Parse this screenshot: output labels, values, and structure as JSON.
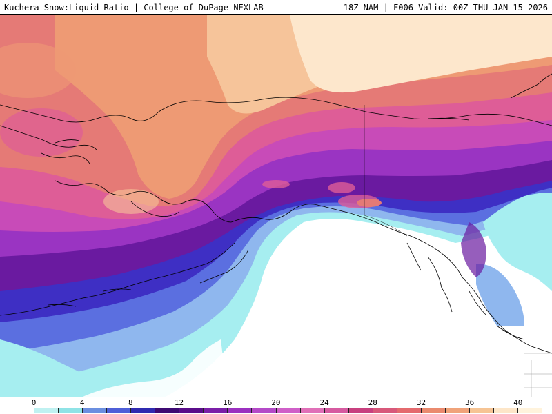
{
  "header": {
    "title_left": "Kuchera Snow:Liquid Ratio | College of DuPage NEXLAB",
    "title_right": "18Z NAM | F006 Valid: 00Z THU JAN 15 2026"
  },
  "legend": {
    "ticks": [
      "0",
      "4",
      "8",
      "12",
      "16",
      "20",
      "24",
      "28",
      "32",
      "36",
      "40"
    ],
    "tick_values": [
      0,
      4,
      8,
      12,
      16,
      20,
      24,
      28,
      32,
      36,
      40
    ],
    "range": [
      0,
      44
    ],
    "colors": [
      "#ffffff",
      "#bff1f1",
      "#8fe3e6",
      "#6b8fe0",
      "#4f5fd8",
      "#2f2ab0",
      "#3d0a73",
      "#5a0d8a",
      "#7b1fa8",
      "#9b30c0",
      "#b44ac8",
      "#cf5fc8",
      "#e070b8",
      "#d65aa0",
      "#c8407f",
      "#d8587a",
      "#e46a6e",
      "#ea8a6e",
      "#f0a37a",
      "#f6c494",
      "#fde6c8",
      "#fff3dc"
    ],
    "color_step": 2
  },
  "map": {
    "region": "Alaska and Northwestern Canada",
    "colors": {
      "sea_white": "#ffffff",
      "cyan": "#a6eef0",
      "light_blue": "#8fb7ee",
      "blue": "#5b6fe0",
      "deep_blue": "#3e2fc4",
      "dark_purple": "#46107a",
      "purple": "#6a1aa0",
      "violet": "#9a34c2",
      "magenta": "#c84bb8",
      "pink": "#de5d97",
      "salmon": "#e57a76",
      "orange": "#ee9a74",
      "tan": "#f6c49a",
      "cream": "#fde7cc",
      "coast": "#000000"
    }
  }
}
